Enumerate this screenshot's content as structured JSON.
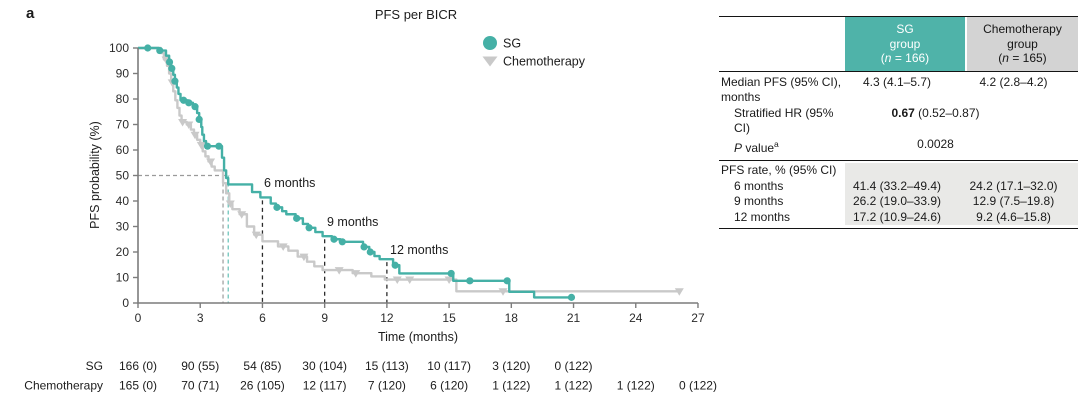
{
  "panel_label": "a",
  "chart_data": {
    "type": "line",
    "subtype": "kaplan-meier-step",
    "title": "PFS per BICR",
    "xlabel": "Time (months)",
    "ylabel": "PFS probability (%)",
    "xlim": [
      0,
      27
    ],
    "ylim": [
      0,
      100
    ],
    "x_ticks": [
      0,
      3,
      6,
      9,
      12,
      15,
      18,
      21,
      24,
      27
    ],
    "y_ticks": [
      0,
      10,
      20,
      30,
      40,
      50,
      60,
      70,
      80,
      90,
      100
    ],
    "grid": false,
    "legend_position": "top-right-inside",
    "series": [
      {
        "name": "Chemotherapy",
        "color": "#c9c9c9",
        "marker": "triangle-down",
        "steps": [
          [
            0,
            100
          ],
          [
            1.1,
            98
          ],
          [
            1.25,
            95.5
          ],
          [
            1.4,
            93
          ],
          [
            1.5,
            90
          ],
          [
            1.6,
            86.5
          ],
          [
            1.7,
            83
          ],
          [
            1.8,
            79.5
          ],
          [
            1.9,
            76.5
          ],
          [
            2.0,
            73.5
          ],
          [
            2.1,
            71
          ],
          [
            2.35,
            70
          ],
          [
            2.55,
            68
          ],
          [
            2.7,
            66
          ],
          [
            2.85,
            64
          ],
          [
            3.0,
            62
          ],
          [
            3.12,
            59.5
          ],
          [
            3.25,
            57.5
          ],
          [
            3.4,
            55.5
          ],
          [
            3.55,
            53.5
          ],
          [
            3.7,
            52
          ],
          [
            4.1,
            47
          ],
          [
            4.25,
            43
          ],
          [
            4.4,
            39
          ],
          [
            4.55,
            36.8
          ],
          [
            4.9,
            34.8
          ],
          [
            5.25,
            30
          ],
          [
            5.6,
            26.8
          ],
          [
            6.0,
            24.2
          ],
          [
            6.75,
            22.2
          ],
          [
            7.25,
            20.5
          ],
          [
            7.7,
            18.2
          ],
          [
            8.15,
            16.2
          ],
          [
            8.5,
            14.4
          ],
          [
            8.9,
            12.9
          ],
          [
            10.35,
            11.7
          ],
          [
            11.25,
            10.4
          ],
          [
            11.9,
            9.2
          ],
          [
            15.35,
            4.6
          ]
        ],
        "end_t": 26.1,
        "censor_marks_months": [
          1.35,
          1.65,
          2.15,
          2.45,
          2.75,
          3.05,
          3.5,
          4.45,
          5.0,
          5.7,
          7.0,
          8.0,
          9.7,
          10.5,
          12.5,
          13.1,
          15.0,
          17.6,
          26.1
        ],
        "median_months": 4.2
      },
      {
        "name": "SG",
        "color": "#45b0a6",
        "marker": "circle",
        "steps": [
          [
            0,
            100
          ],
          [
            1.0,
            99
          ],
          [
            1.35,
            97
          ],
          [
            1.5,
            94.5
          ],
          [
            1.6,
            92
          ],
          [
            1.7,
            89.5
          ],
          [
            1.78,
            87
          ],
          [
            1.87,
            84.5
          ],
          [
            1.95,
            82
          ],
          [
            2.05,
            79.5
          ],
          [
            2.4,
            78.5
          ],
          [
            2.65,
            77
          ],
          [
            2.85,
            74.5
          ],
          [
            2.95,
            72
          ],
          [
            3.05,
            69
          ],
          [
            3.1,
            66
          ],
          [
            3.18,
            63.5
          ],
          [
            3.28,
            61.5
          ],
          [
            4.05,
            57
          ],
          [
            4.15,
            52
          ],
          [
            4.25,
            49
          ],
          [
            4.35,
            46.5
          ],
          [
            5.5,
            43.5
          ],
          [
            5.9,
            41.4
          ],
          [
            6.4,
            39
          ],
          [
            6.65,
            37.5
          ],
          [
            6.95,
            36
          ],
          [
            7.15,
            34.8
          ],
          [
            7.6,
            33.2
          ],
          [
            7.95,
            31
          ],
          [
            8.2,
            29.5
          ],
          [
            8.55,
            27.8
          ],
          [
            8.9,
            26.2
          ],
          [
            9.35,
            25
          ],
          [
            9.75,
            24
          ],
          [
            10.85,
            22
          ],
          [
            11.15,
            20
          ],
          [
            11.4,
            18.4
          ],
          [
            11.65,
            17.2
          ],
          [
            12.3,
            14.8
          ],
          [
            12.6,
            11.6
          ],
          [
            15.2,
            8.7
          ],
          [
            17.9,
            4.4
          ],
          [
            19.1,
            2.2
          ]
        ],
        "end_t": 20.9,
        "censor_marks_months": [
          0.47,
          1.05,
          1.52,
          1.63,
          1.78,
          2.2,
          2.45,
          2.75,
          2.95,
          3.35,
          3.9,
          6.7,
          7.65,
          8.25,
          9.45,
          9.85,
          10.9,
          11.2,
          12.4,
          15.1,
          16.0,
          17.8,
          20.9
        ],
        "median_months": 4.3
      }
    ],
    "reference_lines": {
      "median_horizontal_pct": 50,
      "median_vertical_months": {
        "chemotherapy": 4.1,
        "sg": 4.35
      },
      "timepoint_verticals_months": [
        6,
        9,
        12
      ]
    },
    "timepoint_labels": [
      "6 months",
      "9 months",
      "12 months"
    ]
  },
  "at_risk": {
    "rows": [
      {
        "label": "SG",
        "values": [
          "166 (0)",
          "90 (55)",
          "54 (85)",
          "30 (104)",
          "15 (113)",
          "10 (117)",
          "3 (120)",
          "0 (122)"
        ]
      },
      {
        "label": "Chemotherapy",
        "values": [
          "165 (0)",
          "70 (71)",
          "26 (105)",
          "12 (117)",
          "7 (120)",
          "6 (120)",
          "1 (122)",
          "1 (122)",
          "1 (122)",
          "0 (122)"
        ]
      }
    ]
  },
  "table": {
    "colors": {
      "sg_header_bg": "#4fb3a9",
      "chemo_header_bg": "#d3d3d3",
      "rate_block_bg": "#e9e9e7"
    },
    "header": {
      "sg": {
        "line1": "SG",
        "line2": "group",
        "n_open": "(",
        "n_italic": "n",
        "n_rest": " = 166)"
      },
      "chemo": {
        "line1": "Chemotherapy",
        "line2": "group",
        "n_open": "(",
        "n_italic": "n",
        "n_rest": " = 165)"
      }
    },
    "rows": {
      "median_label": "Median PFS (95% CI), months",
      "median_sg": "4.3 (4.1–5.7)",
      "median_chemo": "4.2 (2.8–4.2)",
      "hr_label": "Stratified HR (95% CI)",
      "hr_bold": "0.67",
      "hr_rest": " (0.52–0.87)",
      "p_italic": "P",
      "p_rest": " value",
      "p_sup": "a",
      "p_value": "0.0028",
      "rate_label": "PFS rate, % (95% CI)",
      "rate_rows": [
        {
          "label": "6 months",
          "sg": "41.4 (33.2–49.4)",
          "chemo": "24.2 (17.1–32.0)"
        },
        {
          "label": "9 months",
          "sg": "26.2 (19.0–33.9)",
          "chemo": "12.9 (7.5–19.8)"
        },
        {
          "label": "12 months",
          "sg": "17.2 (10.9–24.6)",
          "chemo": "9.2 (4.6–15.8)"
        }
      ]
    }
  }
}
